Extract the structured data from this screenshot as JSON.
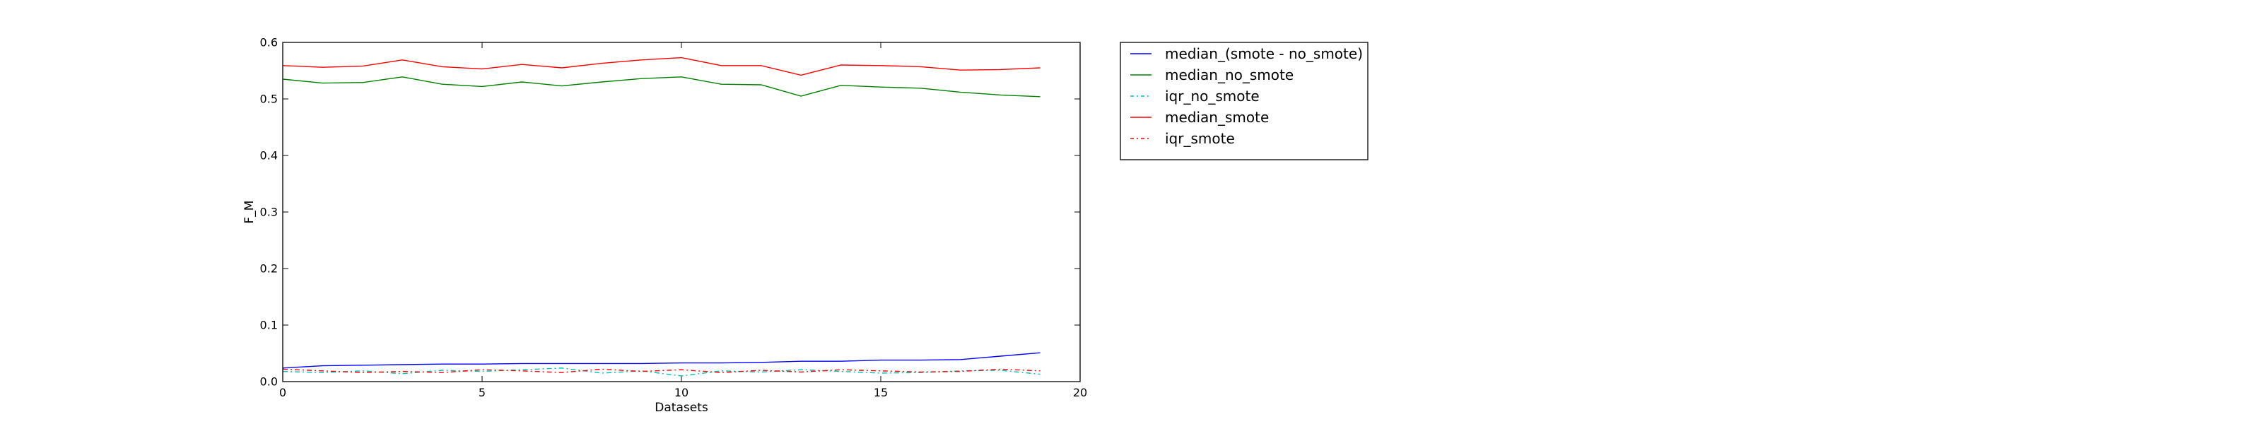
{
  "chart_data": {
    "type": "line",
    "xlabel": "Datasets",
    "ylabel": "F_M",
    "xlim": [
      0,
      20
    ],
    "ylim": [
      0,
      0.6
    ],
    "xticks": [
      "0",
      "5",
      "10",
      "15",
      "20"
    ],
    "yticks": [
      "0.0",
      "0.1",
      "0.2",
      "0.3",
      "0.4",
      "0.5",
      "0.6"
    ],
    "grid": false,
    "legend_position": "outside-top-right",
    "x": [
      0,
      1,
      2,
      3,
      4,
      5,
      6,
      7,
      8,
      9,
      10,
      11,
      12,
      13,
      14,
      15,
      16,
      17,
      18,
      19
    ],
    "series": [
      {
        "name": "median_(smote - no_smote)",
        "color": "#0000ff",
        "style": "solid",
        "values": [
          0.024,
          0.028,
          0.029,
          0.03,
          0.031,
          0.031,
          0.032,
          0.032,
          0.032,
          0.032,
          0.033,
          0.033,
          0.034,
          0.036,
          0.036,
          0.038,
          0.038,
          0.039,
          0.045,
          0.051
        ]
      },
      {
        "name": "median_no_smote",
        "color": "#008000",
        "style": "solid",
        "values": [
          0.535,
          0.528,
          0.529,
          0.539,
          0.526,
          0.522,
          0.53,
          0.523,
          0.53,
          0.536,
          0.539,
          0.526,
          0.525,
          0.505,
          0.524,
          0.521,
          0.519,
          0.512,
          0.507,
          0.504
        ]
      },
      {
        "name": "iqr_no_smote",
        "color": "#00bfbf",
        "style": "dashdot",
        "values": [
          0.018,
          0.016,
          0.019,
          0.014,
          0.02,
          0.018,
          0.021,
          0.024,
          0.015,
          0.019,
          0.01,
          0.019,
          0.017,
          0.021,
          0.018,
          0.015,
          0.016,
          0.019,
          0.02,
          0.013
        ]
      },
      {
        "name": "median_smote",
        "color": "#ff0000",
        "style": "solid",
        "values": [
          0.559,
          0.556,
          0.558,
          0.569,
          0.557,
          0.553,
          0.561,
          0.555,
          0.563,
          0.569,
          0.573,
          0.559,
          0.559,
          0.542,
          0.56,
          0.559,
          0.557,
          0.551,
          0.552,
          0.555
        ]
      },
      {
        "name": "iqr_smote",
        "color": "#ff0000",
        "style": "dashdot",
        "values": [
          0.022,
          0.019,
          0.016,
          0.018,
          0.016,
          0.021,
          0.019,
          0.016,
          0.022,
          0.018,
          0.021,
          0.016,
          0.02,
          0.017,
          0.021,
          0.019,
          0.017,
          0.018,
          0.022,
          0.019
        ]
      }
    ]
  }
}
